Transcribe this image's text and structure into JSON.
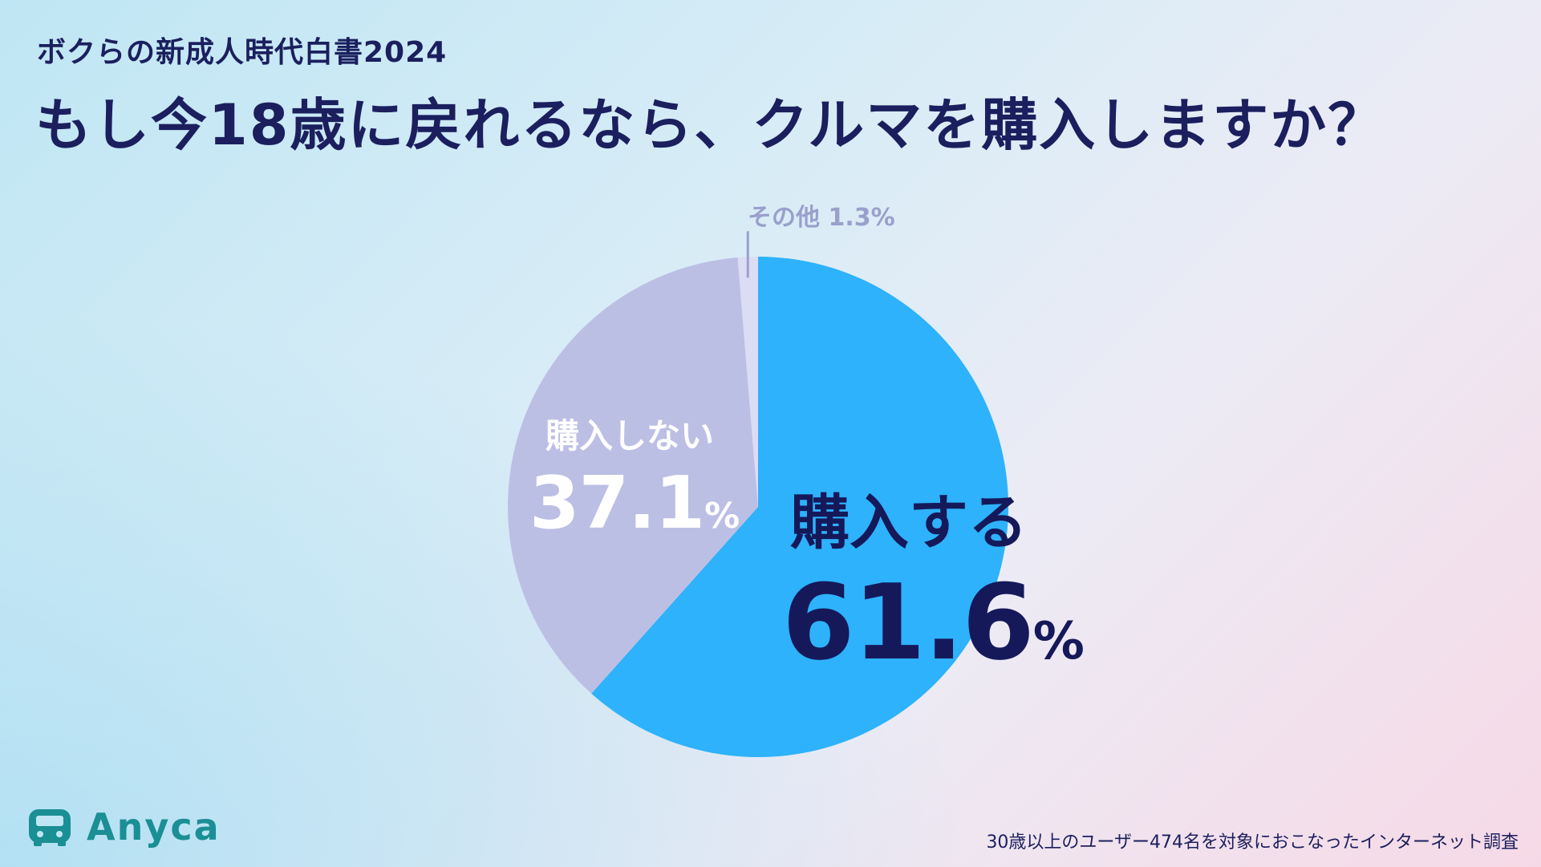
{
  "header": {
    "subtitle": "ボクらの新成人時代白書2024",
    "title": "もし今18歳に戻れるなら、クルマを購入しますか？"
  },
  "chart_data": {
    "type": "pie",
    "unit": "%",
    "slices": [
      {
        "label": "購入する",
        "value": 61.6,
        "color": "#2db2fb"
      },
      {
        "label": "購入しない",
        "value": 37.1,
        "color": "#bcbfe4"
      },
      {
        "label": "その他",
        "value": 1.3,
        "color": "#dcdcf5"
      }
    ],
    "labels": {
      "buy": {
        "name": "購入する",
        "value": "61.6",
        "unit": "%"
      },
      "not_buy": {
        "name": "購入しない",
        "value": "37.1",
        "unit": "%"
      },
      "other": "その他 1.3%"
    }
  },
  "footer": {
    "brand": "Anyca",
    "note": "30歳以上のユーザー474名を対象におこなったインターネット調査",
    "brand_color": "#1a8f94",
    "logo_icon": "car-icon"
  }
}
